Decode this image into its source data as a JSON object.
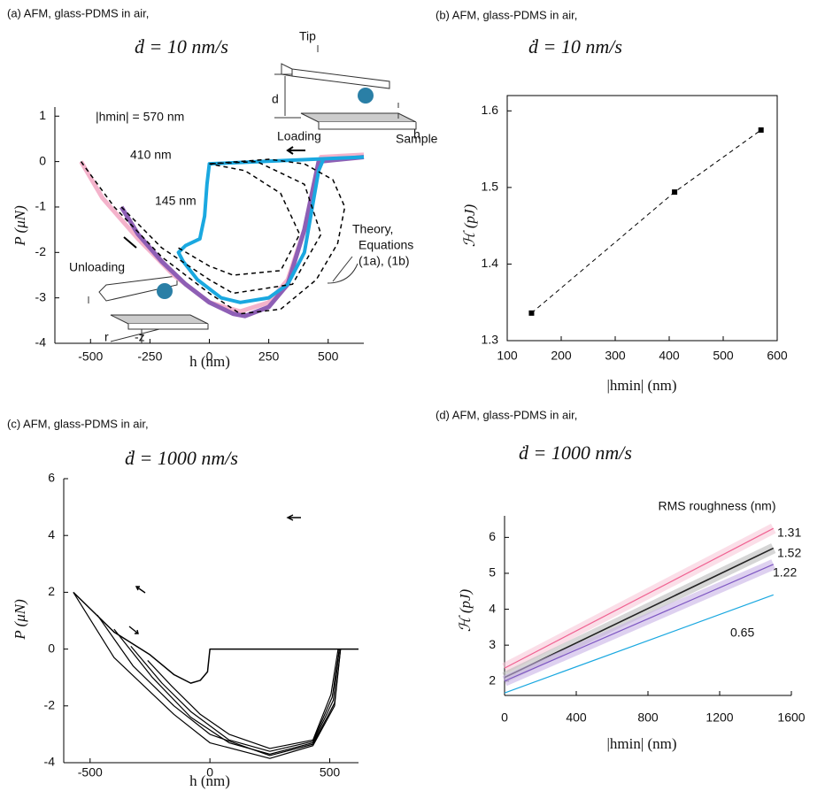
{
  "chart_data": [
    {
      "type": "line",
      "label": "(a) AFM, glass-PDMS in air,",
      "title": "ḋ = 10 nm/s",
      "xlabel": "h (nm)",
      "ylabel": "P (μN)",
      "xlim": [
        -650,
        650
      ],
      "xticks": [
        -500,
        -250,
        0,
        250,
        500
      ],
      "ylim": [
        -4,
        1.2
      ],
      "yticks": [
        -4,
        -3,
        -2,
        -1,
        0,
        1
      ],
      "series": [
        {
          "color": "#f4b3cb",
          "width": 5,
          "x": [
            -540,
            -450,
            -300,
            -150,
            0,
            130,
            250,
            330,
            400,
            440,
            470,
            650
          ],
          "values": [
            0,
            -0.8,
            -1.7,
            -2.5,
            -3.1,
            -3.3,
            -3.1,
            -2.6,
            -1.5,
            -0.5,
            0.1,
            0.15
          ]
        },
        {
          "color": "#8e5fb5",
          "width": 5,
          "x": [
            -370,
            -300,
            -200,
            -100,
            0,
            100,
            150,
            250,
            330,
            400,
            440,
            460,
            650
          ],
          "values": [
            -1.0,
            -1.6,
            -2.2,
            -2.7,
            -3.1,
            -3.35,
            -3.4,
            -3.2,
            -2.7,
            -1.5,
            -0.5,
            0.0,
            0.1
          ]
        },
        {
          "color": "#1aa8e0",
          "width": 4,
          "x": [
            650,
            0,
            -10,
            -20,
            -40,
            -100,
            -130,
            -110,
            -50,
            50,
            130,
            250,
            330,
            400,
            440,
            460,
            480
          ],
          "values": [
            0.1,
            -0.05,
            -0.5,
            -1.2,
            -1.7,
            -1.85,
            -2.0,
            -2.2,
            -2.6,
            -3.0,
            -3.1,
            -3.0,
            -2.7,
            -2.0,
            -0.8,
            -0.2,
            0.05
          ]
        },
        {
          "color": "#000000",
          "width": 1.5,
          "line_style": "dashed",
          "x": [
            -540,
            -400,
            -200,
            0,
            130,
            300,
            450,
            540,
            570,
            520,
            400,
            250,
            0
          ],
          "values": [
            0,
            -1.0,
            -2.1,
            -2.9,
            -3.35,
            -3.25,
            -2.6,
            -1.8,
            -1.0,
            -0.4,
            -0.05,
            0.05,
            -0.05
          ]
        },
        {
          "color": "#000000",
          "width": 1.5,
          "line_style": "dashed",
          "x": [
            -370,
            -200,
            0,
            100,
            350,
            470,
            400,
            200,
            0
          ],
          "values": [
            -1.0,
            -1.9,
            -2.6,
            -2.9,
            -2.7,
            -1.6,
            -0.5,
            0,
            -0.05
          ]
        },
        {
          "color": "#000000",
          "width": 1.5,
          "line_style": "dashed",
          "x": [
            -130,
            0,
            100,
            300,
            380,
            300,
            150,
            0
          ],
          "values": [
            -1.9,
            -2.3,
            -2.5,
            -2.4,
            -1.6,
            -0.7,
            -0.2,
            -0.05
          ]
        }
      ],
      "annotations": [
        "|hmin| = 570 nm",
        "410 nm",
        "145  nm",
        "Theory,",
        "Equations",
        "(1a), (1b)",
        "Tip",
        "d",
        "h",
        "Loading",
        "Sample",
        "Unloading",
        "r",
        "-z"
      ]
    },
    {
      "type": "line",
      "label": "(b) AFM, glass-PDMS in air,",
      "title": "ḋ = 10 nm/s",
      "xlabel": "|hmin| (nm)",
      "ylabel": "ℋ (pJ)",
      "xlim": [
        100,
        600
      ],
      "xticks": [
        100,
        200,
        300,
        400,
        500,
        600
      ],
      "ylim": [
        1.3,
        1.62
      ],
      "yticks": [
        1.3,
        1.4,
        1.5,
        1.6
      ],
      "series": [
        {
          "color": "#000000",
          "width": 1,
          "line_style": "dashed",
          "marker": "square",
          "x": [
            145,
            410,
            570
          ],
          "values": [
            1.336,
            1.494,
            1.575
          ]
        }
      ]
    },
    {
      "type": "line",
      "label": "(c) AFM, glass-PDMS  in air,",
      "title": "ḋ = 1000 nm/s",
      "xlabel": "h (nm)",
      "ylabel": "P (μN)",
      "xlim": [
        -610,
        620
      ],
      "xticks": [
        -500,
        0,
        500
      ],
      "ylim": [
        -4,
        6
      ],
      "yticks": [
        -4,
        -2,
        0,
        2,
        4,
        6
      ],
      "series": [
        {
          "color": "#000000",
          "width": 1.5,
          "x": [
            620,
            0,
            -10,
            -40,
            -80,
            -150,
            -250,
            -400,
            -570
          ],
          "values": [
            0,
            0,
            -0.8,
            -1.1,
            -1.2,
            -0.9,
            -0.2,
            0.6,
            2.0
          ]
        },
        {
          "color": "#000000",
          "width": 1.2,
          "x": [
            -570,
            -400,
            -150,
            0,
            250,
            430,
            520,
            545
          ],
          "values": [
            2.0,
            -0.3,
            -2.3,
            -3.3,
            -3.85,
            -3.4,
            -2,
            0
          ]
        },
        {
          "color": "#000000",
          "width": 1.2,
          "x": [
            -470,
            -320,
            -150,
            0,
            250,
            430,
            520,
            545
          ],
          "values": [
            1.2,
            -0.6,
            -2.0,
            -3.0,
            -3.75,
            -3.35,
            -1.9,
            0
          ]
        },
        {
          "color": "#000000",
          "width": 1.2,
          "x": [
            -400,
            -240,
            -80,
            80,
            250,
            430,
            515,
            540
          ],
          "values": [
            0.7,
            -1.0,
            -2.4,
            -3.3,
            -3.7,
            -3.3,
            -1.8,
            0
          ]
        },
        {
          "color": "#000000",
          "width": 1.2,
          "x": [
            -330,
            -200,
            -80,
            80,
            250,
            430,
            510,
            540
          ],
          "values": [
            0.1,
            -1.2,
            -2.2,
            -3.2,
            -3.6,
            -3.25,
            -1.7,
            0
          ]
        },
        {
          "color": "#000000",
          "width": 1.2,
          "x": [
            -260,
            -160,
            -40,
            80,
            250,
            430,
            505,
            535
          ],
          "values": [
            -0.4,
            -1.3,
            -2.3,
            -3.0,
            -3.5,
            -3.2,
            -1.6,
            0
          ]
        }
      ]
    },
    {
      "type": "line",
      "label": "(d) AFM, glass-PDMS in air,",
      "title": "ḋ = 1000 nm/s",
      "xlabel": "|hmin| (nm)",
      "ylabel": "ℋ (pJ)",
      "legend_title": "RMS roughness (nm)",
      "xlim": [
        0,
        1600
      ],
      "xticks": [
        0,
        400,
        800,
        1200,
        1600
      ],
      "ylim": [
        1.6,
        6.6
      ],
      "yticks": [
        2,
        3,
        4,
        5,
        6
      ],
      "series": [
        {
          "name": "1.31",
          "color": "#f06292",
          "band": "#f8c8d8",
          "width": 1.2,
          "x": [
            0,
            1500
          ],
          "values": [
            2.36,
            6.25
          ]
        },
        {
          "name": "1.52",
          "color": "#222222",
          "band": "#bbbbbb",
          "width": 1.6,
          "x": [
            0,
            1500
          ],
          "values": [
            2.1,
            5.7
          ]
        },
        {
          "name": "1.22",
          "color": "#7e57c2",
          "band": "#c8b3e6",
          "width": 1.2,
          "x": [
            0,
            1500
          ],
          "values": [
            2.0,
            5.25
          ]
        },
        {
          "name": "0.65",
          "color": "#1aa8e0",
          "width": 1.2,
          "x": [
            0,
            1500
          ],
          "values": [
            1.67,
            4.4
          ]
        }
      ]
    }
  ]
}
